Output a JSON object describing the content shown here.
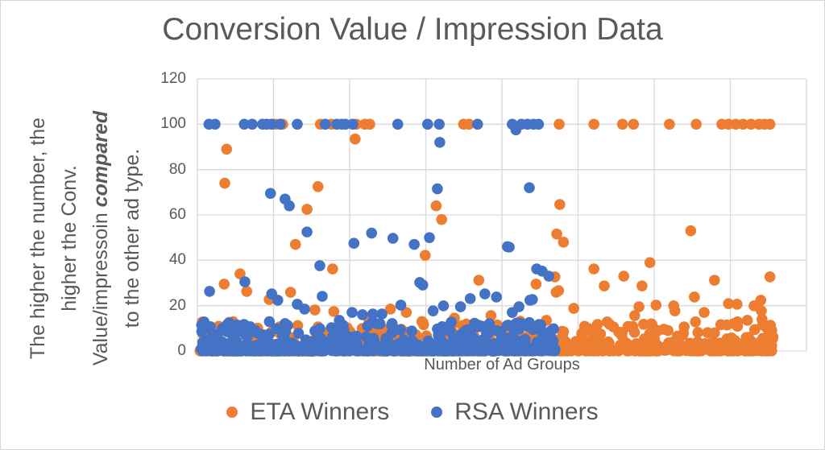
{
  "title": "Conversion Value / Impression Data",
  "x_axis_label": "Number of Ad Groups",
  "y_axis_note": {
    "line1": "The higher the number, the",
    "line2": "higher the Conv.",
    "line3_prefix": "Value/impressoin ",
    "line3_bold": "compared",
    "line4": "to the other ad type."
  },
  "colors": {
    "eta_orange": "#ED7D31",
    "rsa_blue": "#4472C4",
    "gridline": "#D9D9D9",
    "text_gray": "#595959"
  },
  "chart_data": {
    "type": "scatter",
    "title": "Conversion Value / Impression Data",
    "xlabel": "Number of Ad Groups",
    "ylim": [
      0,
      120
    ],
    "yticks": [
      0,
      20,
      40,
      60,
      80,
      100,
      120
    ],
    "x_axis": {
      "tick_labels": "none",
      "units": "percent of plot width (no numeric labels shown)",
      "range": [
        0,
        100
      ],
      "vertical_gridline_intervals": 8
    },
    "grid": "on",
    "legend_position": "bottom-center",
    "marker_radius_px": 6.8,
    "series": [
      {
        "name": "ETA Winners",
        "color": "#ED7D31",
        "points_at_100_x": [
          12.8,
          14.0,
          20.2,
          22.0,
          26.1,
          27.5,
          28.3,
          43.7,
          44.6,
          59.4,
          65.1,
          69.8,
          71.6,
          77.5,
          81.9,
          86.1,
          87.2,
          88.4,
          89.6,
          90.9,
          92.2,
          93.1,
          94.0
        ],
        "scatter_points": [
          [
            4.5,
            74
          ],
          [
            4.8,
            89
          ],
          [
            16.1,
            47
          ],
          [
            18.0,
            62.5
          ],
          [
            19.8,
            72.5
          ],
          [
            25.9,
            93.5
          ],
          [
            39.2,
            64
          ],
          [
            40.1,
            58
          ],
          [
            37.4,
            42.2
          ],
          [
            22.2,
            36.2
          ],
          [
            4.4,
            29.5
          ],
          [
            7.0,
            34
          ],
          [
            8.1,
            26.3
          ],
          [
            11.8,
            22.7
          ],
          [
            15.3,
            25.9
          ],
          [
            19.3,
            18.1
          ],
          [
            22.4,
            17.4
          ],
          [
            28.2,
            13.1
          ],
          [
            31.7,
            18.5
          ],
          [
            34.3,
            17
          ],
          [
            42.2,
            14.5
          ],
          [
            46.2,
            31.2
          ],
          [
            48.2,
            15.6
          ],
          [
            53.0,
            13.1
          ],
          [
            55.6,
            29.5
          ],
          [
            57.3,
            13.5
          ],
          [
            58.7,
            32.7
          ],
          [
            58.9,
            25.9
          ],
          [
            59.0,
            51.6
          ],
          [
            59.3,
            26.6
          ],
          [
            59.5,
            64.6
          ],
          [
            60.1,
            48
          ],
          [
            61.8,
            18.8
          ],
          [
            65.1,
            36.2
          ],
          [
            66.8,
            28.7
          ],
          [
            70.0,
            33
          ],
          [
            71.8,
            15.6
          ],
          [
            72.5,
            19.5
          ],
          [
            73.0,
            28.7
          ],
          [
            74.3,
            39
          ],
          [
            75.3,
            20.2
          ],
          [
            78.2,
            19.9
          ],
          [
            78.4,
            17.7
          ],
          [
            81.0,
            53
          ],
          [
            81.6,
            23.8
          ],
          [
            83.2,
            17
          ],
          [
            84.9,
            31.2
          ],
          [
            87.2,
            20.9
          ],
          [
            88.6,
            20.6
          ],
          [
            90.3,
            13.5
          ],
          [
            91.4,
            19.9
          ],
          [
            92.5,
            22.4
          ],
          [
            92.6,
            17.7
          ],
          [
            92.7,
            14
          ],
          [
            92.8,
            11.5
          ],
          [
            94.0,
            32.7
          ]
        ],
        "dense_band": {
          "description": "overplotted cloud of low conversion-value ratios hugging 0",
          "seed": 96321,
          "count": 680,
          "x_range": [
            0.4,
            94.6
          ],
          "y_max": 13,
          "y_exponent": 3.5
        }
      },
      {
        "name": "RSA Winners",
        "color": "#4472C4",
        "points_at_100_x": [
          1.9,
          2.9,
          7.7,
          9.0,
          10.7,
          11.4,
          12.2,
          13.6,
          16.4,
          21.0,
          22.9,
          23.7,
          24.3,
          25.5,
          32.9,
          37.8,
          39.7,
          46.0,
          51.7,
          53.2,
          54.2,
          55.2,
          56.0
        ],
        "scatter_points": [
          [
            2.0,
            26.3
          ],
          [
            7.8,
            30.5
          ],
          [
            12.0,
            69.5
          ],
          [
            12.2,
            25.2
          ],
          [
            13.2,
            22.4
          ],
          [
            14.4,
            67
          ],
          [
            15.1,
            64
          ],
          [
            16.4,
            20.6
          ],
          [
            17.6,
            18.5
          ],
          [
            18.0,
            52.5
          ],
          [
            20.1,
            37.6
          ],
          [
            20.5,
            24.1
          ],
          [
            23.3,
            13.5
          ],
          [
            25.4,
            17
          ],
          [
            25.7,
            47.5
          ],
          [
            27.1,
            16
          ],
          [
            28.6,
            52
          ],
          [
            28.8,
            16.3
          ],
          [
            30.3,
            16.3
          ],
          [
            32.1,
            49.7
          ],
          [
            33.4,
            20.2
          ],
          [
            35.6,
            47
          ],
          [
            36.5,
            30.2
          ],
          [
            37.0,
            29.1
          ],
          [
            38.1,
            50
          ],
          [
            38.7,
            17.7
          ],
          [
            39.4,
            71.5
          ],
          [
            39.8,
            92
          ],
          [
            40.4,
            19.9
          ],
          [
            43.2,
            19.5
          ],
          [
            44.8,
            23.1
          ],
          [
            47.2,
            25.2
          ],
          [
            49.1,
            23.8
          ],
          [
            50.9,
            46
          ],
          [
            51.2,
            45.8
          ],
          [
            51.7,
            17
          ],
          [
            52.3,
            97.5
          ],
          [
            52.8,
            19.5
          ],
          [
            54.5,
            72
          ],
          [
            54.6,
            22.4
          ],
          [
            55.0,
            22.7
          ],
          [
            55.7,
            36.2
          ],
          [
            56.6,
            35.2
          ],
          [
            57.7,
            33
          ]
        ],
        "dense_band": {
          "description": "overplotted cloud of low conversion-value ratios hugging 0",
          "seed": 70707,
          "count": 560,
          "x_range": [
            0.4,
            58.7
          ],
          "y_max": 13,
          "y_exponent": 3.5
        }
      }
    ]
  }
}
